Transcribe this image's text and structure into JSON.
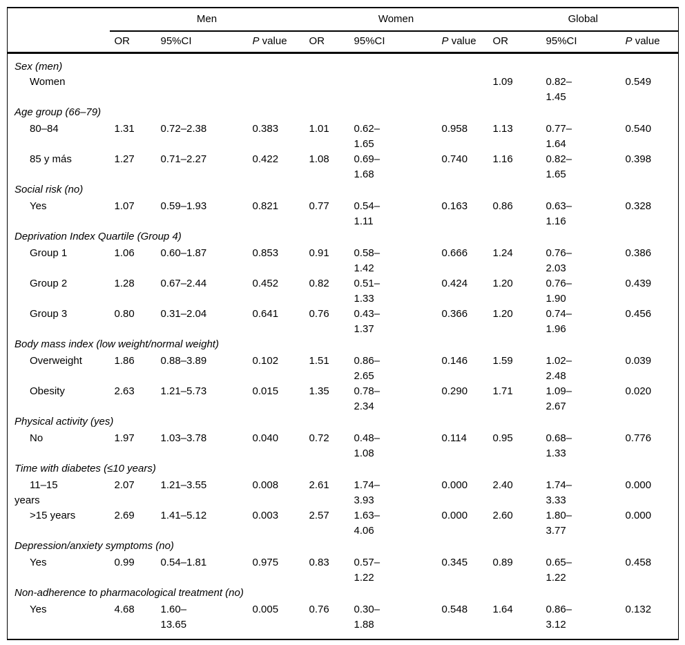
{
  "columns": {
    "or": "OR",
    "ci": "95%CI",
    "p_italic": "P",
    "p_rest": " value"
  },
  "groups": {
    "men": "Men",
    "women": "Women",
    "global": "Global"
  },
  "table": {
    "sections": [
      {
        "header": "Sex (men)",
        "rows": [
          {
            "label": "Women",
            "men": {
              "or": "",
              "ci": "",
              "p": ""
            },
            "women": {
              "or": "",
              "ci": "",
              "p": ""
            },
            "global": {
              "or": "1.09",
              "ci": "0.82–\n1.45",
              "p": "0.549"
            }
          }
        ]
      },
      {
        "header": "Age group (66–79)",
        "rows": [
          {
            "label": "80–84",
            "men": {
              "or": "1.31",
              "ci": "0.72–2.38",
              "p": "0.383"
            },
            "women": {
              "or": "1.01",
              "ci": "0.62–\n1.65",
              "p": "0.958"
            },
            "global": {
              "or": "1.13",
              "ci": "0.77–\n1.64",
              "p": "0.540"
            }
          },
          {
            "label": "85 y más",
            "men": {
              "or": "1.27",
              "ci": "0.71–2.27",
              "p": "0.422"
            },
            "women": {
              "or": "1.08",
              "ci": "0.69–\n1.68",
              "p": "0.740"
            },
            "global": {
              "or": "1.16",
              "ci": "0.82–\n1.65",
              "p": "0.398"
            }
          }
        ]
      },
      {
        "header": "Social risk (no)",
        "rows": [
          {
            "label": "Yes",
            "men": {
              "or": "1.07",
              "ci": "0.59–1.93",
              "p": "0.821"
            },
            "women": {
              "or": "0.77",
              "ci": "0.54–\n1.11",
              "p": "0.163"
            },
            "global": {
              "or": "0.86",
              "ci": "0.63–\n1.16",
              "p": "0.328"
            }
          }
        ]
      },
      {
        "header": "Deprivation Index Quartile (Group 4)",
        "rows": [
          {
            "label": "Group 1",
            "men": {
              "or": "1.06",
              "ci": "0.60–1.87",
              "p": "0.853"
            },
            "women": {
              "or": "0.91",
              "ci": "0.58–\n1.42",
              "p": "0.666"
            },
            "global": {
              "or": "1.24",
              "ci": "0.76–\n2.03",
              "p": "0.386"
            }
          },
          {
            "label": "Group 2",
            "men": {
              "or": "1.28",
              "ci": "0.67–2.44",
              "p": "0.452"
            },
            "women": {
              "or": "0.82",
              "ci": "0.51–\n1.33",
              "p": "0.424"
            },
            "global": {
              "or": "1.20",
              "ci": "0.76–\n1.90",
              "p": "0.439"
            }
          },
          {
            "label": "Group 3",
            "men": {
              "or": "0.80",
              "ci": "0.31–2.04",
              "p": "0.641"
            },
            "women": {
              "or": "0.76",
              "ci": "0.43–\n1.37",
              "p": "0.366"
            },
            "global": {
              "or": "1.20",
              "ci": "0.74–\n1.96",
              "p": "0.456"
            }
          }
        ]
      },
      {
        "header": "Body mass index (low weight/normal weight)",
        "rows": [
          {
            "label": "Overweight",
            "men": {
              "or": "1.86",
              "ci": "0.88–3.89",
              "p": "0.102"
            },
            "women": {
              "or": "1.51",
              "ci": "0.86–\n2.65",
              "p": "0.146"
            },
            "global": {
              "or": "1.59",
              "ci": "1.02–\n2.48",
              "p": "0.039"
            }
          },
          {
            "label": "Obesity",
            "men": {
              "or": "2.63",
              "ci": "1.21–5.73",
              "p": "0.015"
            },
            "women": {
              "or": "1.35",
              "ci": "0.78–\n2.34",
              "p": "0.290"
            },
            "global": {
              "or": "1.71",
              "ci": "1.09–\n2.67",
              "p": "0.020"
            }
          }
        ]
      },
      {
        "header": "Physical activity (yes)",
        "rows": [
          {
            "label": "No",
            "men": {
              "or": "1.97",
              "ci": "1.03–3.78",
              "p": "0.040"
            },
            "women": {
              "or": "0.72",
              "ci": "0.48–\n1.08",
              "p": "0.114"
            },
            "global": {
              "or": "0.95",
              "ci": "0.68–\n1.33",
              "p": "0.776"
            }
          }
        ]
      },
      {
        "header": "Time with diabetes (≤10 years)",
        "rows": [
          {
            "label": "11–15\nyears",
            "men": {
              "or": "2.07",
              "ci": "1.21–3.55",
              "p": "0.008"
            },
            "women": {
              "or": "2.61",
              "ci": "1.74–\n3.93",
              "p": "0.000"
            },
            "global": {
              "or": "2.40",
              "ci": "1.74–\n3.33",
              "p": "0.000"
            }
          },
          {
            "label": ">15 years",
            "men": {
              "or": "2.69",
              "ci": "1.41–5.12",
              "p": "0.003"
            },
            "women": {
              "or": "2.57",
              "ci": "1.63–\n4.06",
              "p": "0.000"
            },
            "global": {
              "or": "2.60",
              "ci": "1.80–\n3.77",
              "p": "0.000"
            }
          }
        ]
      },
      {
        "header": "Depression/anxiety symptoms (no)",
        "rows": [
          {
            "label": "Yes",
            "men": {
              "or": "0.99",
              "ci": "0.54–1.81",
              "p": "0.975"
            },
            "women": {
              "or": "0.83",
              "ci": "0.57–\n1.22",
              "p": "0.345"
            },
            "global": {
              "or": "0.89",
              "ci": "0.65–\n1.22",
              "p": "0.458"
            }
          }
        ]
      },
      {
        "header": "Non-adherence to pharmacological treatment (no)",
        "rows": [
          {
            "label": "Yes",
            "men": {
              "or": "4.68",
              "ci": "1.60–\n13.65",
              "p": "0.005"
            },
            "women": {
              "or": "0.76",
              "ci": "0.30–\n1.88",
              "p": "0.548"
            },
            "global": {
              "or": "1.64",
              "ci": "0.86–\n3.12",
              "p": "0.132"
            }
          }
        ]
      }
    ]
  }
}
